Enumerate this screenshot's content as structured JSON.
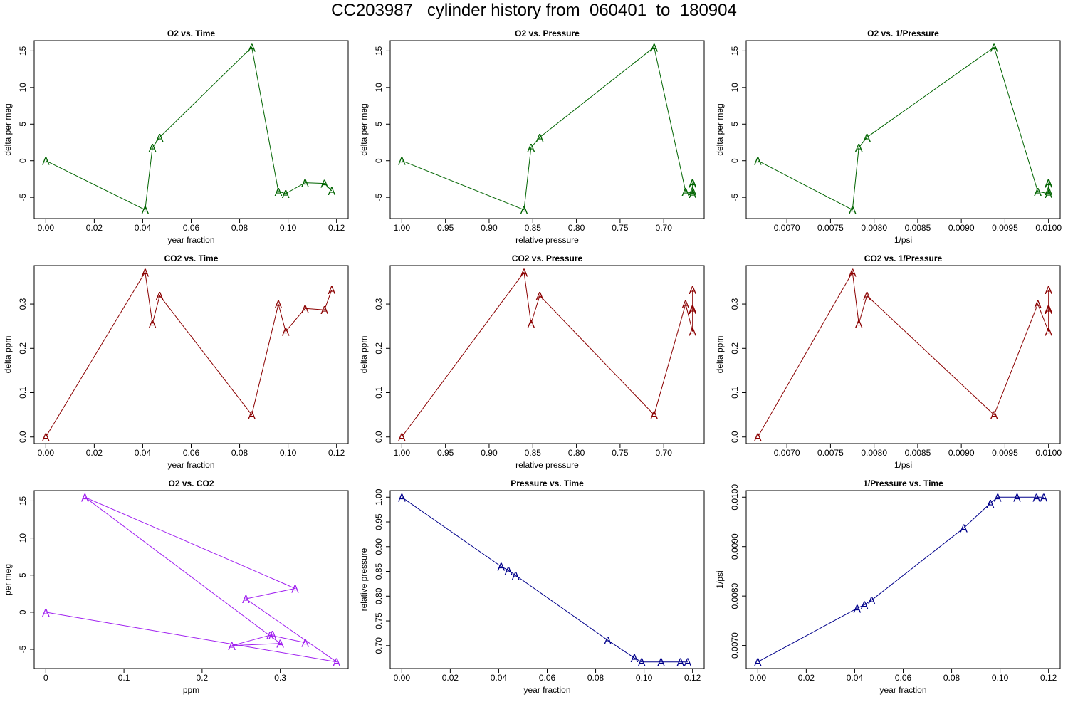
{
  "page_title": "CC203987   cylinder history from  060401  to  180904",
  "chart_data": [
    {
      "type": "line",
      "title": "O2 vs. Time",
      "xlabel": "year fraction",
      "ylabel": "delta per meg",
      "xlim": [
        0,
        0.12
      ],
      "ylim": [
        -7,
        15.5
      ],
      "xticks": [
        0,
        0.02,
        0.04,
        0.06,
        0.08,
        0.1,
        0.12
      ],
      "xtick_labels": [
        "0.00",
        "0.02",
        "0.04",
        "0.06",
        "0.08",
        "0.10",
        "0.12"
      ],
      "yticks": [
        -5,
        0,
        5,
        10,
        15
      ],
      "ytick_labels": [
        "-5",
        "0",
        "5",
        "10",
        "15"
      ],
      "color": "#006400",
      "marker": "A",
      "x": [
        0.0,
        0.041,
        0.044,
        0.047,
        0.085,
        0.096,
        0.099,
        0.107,
        0.115,
        0.118
      ],
      "y": [
        0,
        -6.7,
        1.8,
        3.2,
        15.5,
        -4.2,
        -4.5,
        -3.0,
        -3.1,
        -4.1
      ]
    },
    {
      "type": "line",
      "title": "O2 vs. Pressure",
      "xlabel": "relative pressure",
      "ylabel": "delta per meg",
      "xlim": [
        1.0,
        0.667
      ],
      "ylim": [
        -7,
        15.5
      ],
      "x_reversed": true,
      "xticks": [
        1.0,
        0.95,
        0.9,
        0.85,
        0.8,
        0.75,
        0.7
      ],
      "xtick_labels": [
        "1.00",
        "0.95",
        "0.90",
        "0.85",
        "0.80",
        "0.75",
        "0.70"
      ],
      "yticks": [
        -5,
        0,
        5,
        10,
        15
      ],
      "ytick_labels": [
        "-5",
        "0",
        "5",
        "10",
        "15"
      ],
      "color": "#006400",
      "marker": "A",
      "x": [
        1.0,
        0.86,
        0.852,
        0.842,
        0.711,
        0.675,
        0.667,
        0.667,
        0.667,
        0.667
      ],
      "y": [
        0,
        -6.7,
        1.8,
        3.2,
        15.5,
        -4.2,
        -4.5,
        -3.0,
        -3.1,
        -4.1
      ]
    },
    {
      "type": "line",
      "title": "O2 vs. 1/Pressure",
      "xlabel": "1/psi",
      "ylabel": "delta per meg",
      "xlim": [
        0.0066667,
        0.01
      ],
      "ylim": [
        -7,
        15.5
      ],
      "xticks": [
        0.007,
        0.0075,
        0.008,
        0.0085,
        0.009,
        0.0095,
        0.01
      ],
      "xtick_labels": [
        "0.0070",
        "0.0075",
        "0.0080",
        "0.0085",
        "0.0090",
        "0.0095",
        "0.0100"
      ],
      "yticks": [
        -5,
        0,
        5,
        10,
        15
      ],
      "ytick_labels": [
        "-5",
        "0",
        "5",
        "10",
        "15"
      ],
      "color": "#006400",
      "marker": "A",
      "x": [
        0.0066667,
        0.007752,
        0.007825,
        0.007918,
        0.009376,
        0.009877,
        0.01,
        0.01,
        0.01,
        0.01
      ],
      "y": [
        0,
        -6.7,
        1.8,
        3.2,
        15.5,
        -4.2,
        -4.5,
        -3.0,
        -3.1,
        -4.1
      ]
    },
    {
      "type": "line",
      "title": "CO2 vs. Time",
      "xlabel": "year fraction",
      "ylabel": "delta ppm",
      "xlim": [
        0,
        0.12
      ],
      "ylim": [
        0,
        0.372
      ],
      "xticks": [
        0,
        0.02,
        0.04,
        0.06,
        0.08,
        0.1,
        0.12
      ],
      "xtick_labels": [
        "0.00",
        "0.02",
        "0.04",
        "0.06",
        "0.08",
        "0.10",
        "0.12"
      ],
      "yticks": [
        0,
        0.1,
        0.2,
        0.3
      ],
      "ytick_labels": [
        "0.0",
        "0.1",
        "0.2",
        "0.3"
      ],
      "color": "#8b0000",
      "marker": "A",
      "x": [
        0.0,
        0.041,
        0.044,
        0.047,
        0.085,
        0.096,
        0.099,
        0.107,
        0.115,
        0.118
      ],
      "y": [
        0,
        0.372,
        0.256,
        0.319,
        0.05,
        0.3,
        0.238,
        0.29,
        0.287,
        0.332
      ]
    },
    {
      "type": "line",
      "title": "CO2 vs. Pressure",
      "xlabel": "relative pressure",
      "ylabel": "delta ppm",
      "xlim": [
        1.0,
        0.667
      ],
      "ylim": [
        0,
        0.372
      ],
      "x_reversed": true,
      "xticks": [
        1.0,
        0.95,
        0.9,
        0.85,
        0.8,
        0.75,
        0.7
      ],
      "xtick_labels": [
        "1.00",
        "0.95",
        "0.90",
        "0.85",
        "0.80",
        "0.75",
        "0.70"
      ],
      "yticks": [
        0,
        0.1,
        0.2,
        0.3
      ],
      "ytick_labels": [
        "0.0",
        "0.1",
        "0.2",
        "0.3"
      ],
      "color": "#8b0000",
      "marker": "A",
      "x": [
        1.0,
        0.86,
        0.852,
        0.842,
        0.711,
        0.675,
        0.667,
        0.667,
        0.667,
        0.667
      ],
      "y": [
        0,
        0.372,
        0.256,
        0.319,
        0.05,
        0.3,
        0.238,
        0.29,
        0.287,
        0.332
      ]
    },
    {
      "type": "line",
      "title": "CO2 vs. 1/Pressure",
      "xlabel": "1/psi",
      "ylabel": "delta ppm",
      "xlim": [
        0.0066667,
        0.01
      ],
      "ylim": [
        0,
        0.372
      ],
      "xticks": [
        0.007,
        0.0075,
        0.008,
        0.0085,
        0.009,
        0.0095,
        0.01
      ],
      "xtick_labels": [
        "0.0070",
        "0.0075",
        "0.0080",
        "0.0085",
        "0.0090",
        "0.0095",
        "0.0100"
      ],
      "yticks": [
        0,
        0.1,
        0.2,
        0.3
      ],
      "ytick_labels": [
        "0.0",
        "0.1",
        "0.2",
        "0.3"
      ],
      "color": "#8b0000",
      "marker": "A",
      "x": [
        0.0066667,
        0.007752,
        0.007825,
        0.007918,
        0.009376,
        0.009877,
        0.01,
        0.01,
        0.01,
        0.01
      ],
      "y": [
        0,
        0.372,
        0.256,
        0.319,
        0.05,
        0.3,
        0.238,
        0.29,
        0.287,
        0.332
      ]
    },
    {
      "type": "line",
      "title": "O2 vs. CO2",
      "xlabel": "ppm",
      "ylabel": "per meg",
      "xlim": [
        0,
        0.372
      ],
      "ylim": [
        -6.7,
        15.5
      ],
      "xticks": [
        0,
        0.1,
        0.2,
        0.3
      ],
      "xtick_labels": [
        "0",
        "0.1",
        "0.2",
        "0.3"
      ],
      "yticks": [
        -5,
        0,
        5,
        10,
        15
      ],
      "ytick_labels": [
        "-5",
        "0",
        "5",
        "10",
        "15"
      ],
      "color": "#a020f0",
      "marker": "A",
      "x": [
        0,
        0.372,
        0.256,
        0.319,
        0.05,
        0.3,
        0.238,
        0.29,
        0.287,
        0.332
      ],
      "y": [
        0,
        -6.7,
        1.8,
        3.2,
        15.5,
        -4.2,
        -4.5,
        -3.0,
        -3.1,
        -4.1
      ]
    },
    {
      "type": "line",
      "title": "Pressure vs. Time",
      "xlabel": "year fraction",
      "ylabel": "relative pressure",
      "xlim": [
        0,
        0.12
      ],
      "ylim": [
        0.667,
        1.0
      ],
      "xticks": [
        0,
        0.02,
        0.04,
        0.06,
        0.08,
        0.1,
        0.12
      ],
      "xtick_labels": [
        "0.00",
        "0.02",
        "0.04",
        "0.06",
        "0.08",
        "0.10",
        "0.12"
      ],
      "yticks": [
        0.7,
        0.75,
        0.8,
        0.85,
        0.9,
        0.95,
        1.0
      ],
      "ytick_labels": [
        "0.70",
        "0.75",
        "0.80",
        "0.85",
        "0.90",
        "0.95",
        "1.00"
      ],
      "color": "#00008b",
      "marker": "A",
      "x": [
        0.0,
        0.041,
        0.044,
        0.047,
        0.085,
        0.096,
        0.099,
        0.107,
        0.115,
        0.118
      ],
      "y": [
        1.0,
        0.86,
        0.852,
        0.842,
        0.711,
        0.675,
        0.667,
        0.667,
        0.667,
        0.667
      ]
    },
    {
      "type": "line",
      "title": "1/Pressure vs. Time",
      "xlabel": "year fraction",
      "ylabel": "1/psi",
      "xlim": [
        0,
        0.12
      ],
      "ylim": [
        0.0066667,
        0.01
      ],
      "xticks": [
        0,
        0.02,
        0.04,
        0.06,
        0.08,
        0.1,
        0.12
      ],
      "xtick_labels": [
        "0.00",
        "0.02",
        "0.04",
        "0.06",
        "0.08",
        "0.10",
        "0.12"
      ],
      "yticks": [
        0.007,
        0.008,
        0.009,
        0.01
      ],
      "ytick_labels": [
        "0.0070",
        "0.0080",
        "0.0090",
        "0.0100"
      ],
      "color": "#00008b",
      "marker": "A",
      "x": [
        0.0,
        0.041,
        0.044,
        0.047,
        0.085,
        0.096,
        0.099,
        0.107,
        0.115,
        0.118
      ],
      "y": [
        0.0066667,
        0.007752,
        0.007825,
        0.007918,
        0.009376,
        0.009877,
        0.01,
        0.01,
        0.01,
        0.01
      ]
    }
  ]
}
